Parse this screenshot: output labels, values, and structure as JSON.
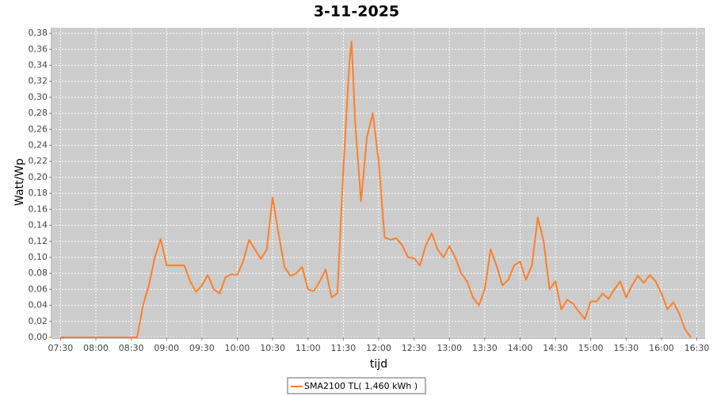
{
  "chart_data": {
    "type": "line",
    "title": "3-11-2025",
    "x_label": "tijd",
    "y_label": "Watt/Wp",
    "x": [
      "07:30",
      "08:00",
      "08:30",
      "08:35",
      "08:40",
      "08:45",
      "08:50",
      "08:55",
      "09:00",
      "09:05",
      "09:10",
      "09:15",
      "09:20",
      "09:25",
      "09:30",
      "09:35",
      "09:40",
      "09:45",
      "09:50",
      "09:55",
      "10:00",
      "10:05",
      "10:10",
      "10:15",
      "10:20",
      "10:25",
      "10:30",
      "10:35",
      "10:40",
      "10:45",
      "10:50",
      "10:55",
      "11:00",
      "11:05",
      "11:10",
      "11:15",
      "11:20",
      "11:25",
      "11:30",
      "11:35",
      "11:37",
      "11:40",
      "11:45",
      "11:50",
      "11:55",
      "12:00",
      "12:05",
      "12:10",
      "12:15",
      "12:20",
      "12:25",
      "12:30",
      "12:35",
      "12:40",
      "12:45",
      "12:50",
      "12:55",
      "13:00",
      "13:05",
      "13:10",
      "13:15",
      "13:20",
      "13:25",
      "13:30",
      "13:35",
      "13:40",
      "13:45",
      "13:50",
      "13:55",
      "14:00",
      "14:05",
      "14:10",
      "14:15",
      "14:20",
      "14:25",
      "14:30",
      "14:35",
      "14:40",
      "14:45",
      "14:50",
      "14:55",
      "15:00",
      "15:05",
      "15:10",
      "15:15",
      "15:20",
      "15:25",
      "15:30",
      "15:35",
      "15:40",
      "15:45",
      "15:50",
      "15:55",
      "16:00",
      "16:05",
      "16:10",
      "16:15",
      "16:20",
      "16:25"
    ],
    "series": [
      {
        "name": "SMA2100 TL( 1,460 kWh )",
        "color": "#ff7f2a",
        "values": [
          0,
          0,
          0,
          0,
          0.04,
          0.065,
          0.1,
          0.123,
          0.09,
          0.09,
          0.09,
          0.09,
          0.07,
          0.057,
          0.065,
          0.078,
          0.06,
          0.055,
          0.075,
          0.079,
          0.078,
          0.095,
          0.122,
          0.11,
          0.098,
          0.11,
          0.175,
          0.13,
          0.088,
          0.077,
          0.08,
          0.088,
          0.06,
          0.058,
          0.07,
          0.085,
          0.05,
          0.055,
          0.21,
          0.34,
          0.37,
          0.27,
          0.17,
          0.25,
          0.28,
          0.22,
          0.125,
          0.122,
          0.124,
          0.115,
          0.1,
          0.099,
          0.09,
          0.115,
          0.13,
          0.11,
          0.1,
          0.114,
          0.1,
          0.08,
          0.07,
          0.05,
          0.04,
          0.06,
          0.11,
          0.09,
          0.065,
          0.072,
          0.09,
          0.095,
          0.072,
          0.09,
          0.15,
          0.12,
          0.06,
          0.07,
          0.035,
          0.047,
          0.042,
          0.032,
          0.023,
          0.045,
          0.045,
          0.055,
          0.048,
          0.06,
          0.07,
          0.05,
          0.065,
          0.077,
          0.068,
          0.078,
          0.07,
          0.055,
          0.035,
          0.044,
          0.03,
          0.01,
          0
        ]
      }
    ],
    "xlim": [
      "07:23",
      "16:37"
    ],
    "xticks": [
      "07:30",
      "08:00",
      "08:30",
      "09:00",
      "09:30",
      "10:00",
      "10:30",
      "11:00",
      "11:30",
      "12:00",
      "12:30",
      "13:00",
      "13:30",
      "14:00",
      "14:30",
      "15:00",
      "15:30",
      "16:00",
      "16:30"
    ],
    "ylim": [
      0,
      0.387
    ],
    "yticks": [
      {
        "value": 0,
        "label": "0,00"
      },
      {
        "value": 0.02,
        "label": "0,02"
      },
      {
        "value": 0.04,
        "label": "0,04"
      },
      {
        "value": 0.06,
        "label": "0,06"
      },
      {
        "value": 0.08,
        "label": "0,08"
      },
      {
        "value": 0.1,
        "label": "0,10"
      },
      {
        "value": 0.12,
        "label": "0,12"
      },
      {
        "value": 0.14,
        "label": "0,14"
      },
      {
        "value": 0.16,
        "label": "0,16"
      },
      {
        "value": 0.18,
        "label": "0,18"
      },
      {
        "value": 0.2,
        "label": "0,20"
      },
      {
        "value": 0.22,
        "label": "0,22"
      },
      {
        "value": 0.24,
        "label": "0,24"
      },
      {
        "value": 0.26,
        "label": "0,26"
      },
      {
        "value": 0.28,
        "label": "0,28"
      },
      {
        "value": 0.3,
        "label": "0,30"
      },
      {
        "value": 0.32,
        "label": "0,32"
      },
      {
        "value": 0.34,
        "label": "0,34"
      },
      {
        "value": 0.36,
        "label": "0,36"
      },
      {
        "value": 0.38,
        "label": "0,38"
      }
    ],
    "grid": true,
    "legend": "bottom"
  }
}
